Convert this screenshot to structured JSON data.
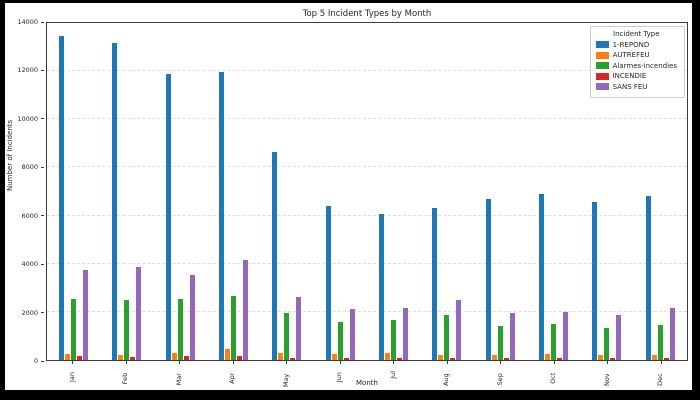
{
  "window": {
    "outer_background": "#000000",
    "figure_background": "#ffffff"
  },
  "chart_data": {
    "type": "bar",
    "title": "Top 5 Incident Types by Month",
    "xlabel": "Month",
    "ylabel": "Number of Incidents",
    "categories": [
      "Jan",
      "Feb",
      "Mar",
      "Apr",
      "May",
      "Jun",
      "Jul",
      "Aug",
      "Sep",
      "Oct",
      "Nov",
      "Dec"
    ],
    "series": [
      {
        "name": "1-REPOND",
        "color": "#1f77b4",
        "values": [
          13450,
          13150,
          11900,
          11950,
          8650,
          6400,
          6050,
          6300,
          6700,
          6900,
          6550,
          6800
        ]
      },
      {
        "name": "AUTREFEU",
        "color": "#ff7f0e",
        "values": [
          250,
          200,
          300,
          450,
          280,
          250,
          290,
          210,
          220,
          260,
          210,
          220
        ]
      },
      {
        "name": "Alarmes-incendies",
        "color": "#2ca02c",
        "values": [
          2550,
          2500,
          2550,
          2650,
          1950,
          1600,
          1650,
          1850,
          1400,
          1500,
          1350,
          1450
        ]
      },
      {
        "name": "INCENDIE",
        "color": "#d62728",
        "values": [
          150,
          110,
          160,
          150,
          90,
          80,
          80,
          70,
          70,
          100,
          70,
          100
        ]
      },
      {
        "name": "SANS FEU",
        "color": "#9467bd",
        "values": [
          3750,
          3850,
          3550,
          4150,
          2600,
          2100,
          2150,
          2500,
          1950,
          2000,
          1850,
          2150
        ]
      }
    ],
    "ylim": [
      0,
      14000
    ],
    "yticks": [
      0,
      2000,
      4000,
      6000,
      8000,
      10000,
      12000,
      14000
    ],
    "grid": "horizontal-dashed",
    "legend_title": "Incident Type",
    "legend_position": "upper-right"
  }
}
